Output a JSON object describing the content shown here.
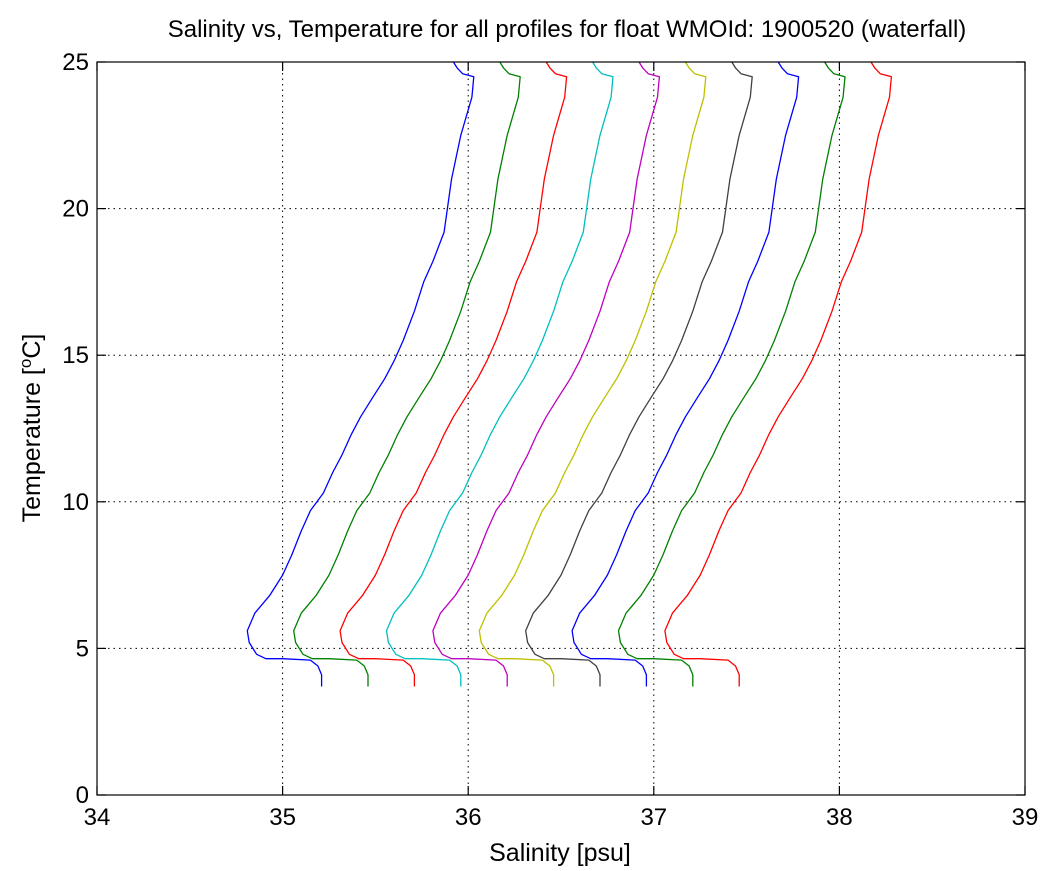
{
  "chart_data": {
    "type": "line",
    "title": "Salinity vs, Temperature for all profiles for float WMOId: 1900520 (waterfall)",
    "xlabel": "Salinity [psu]",
    "ylabel_prefix": "Temperature [",
    "ylabel_superscript": "o",
    "ylabel_suffix": "C]",
    "xlim": [
      34,
      39
    ],
    "ylim": [
      0,
      25
    ],
    "xticks": [
      34,
      35,
      36,
      37,
      38,
      39
    ],
    "yticks": [
      0,
      5,
      10,
      15,
      20,
      25
    ],
    "xtick_labels": [
      "34",
      "35",
      "36",
      "37",
      "38",
      "39"
    ],
    "ytick_labels": [
      "0",
      "5",
      "10",
      "15",
      "20",
      "25"
    ],
    "grid": true,
    "grid_style": "dotted",
    "waterfall_offset": 0.25,
    "base_profile": [
      [
        35.21,
        3.7
      ],
      [
        35.21,
        4.1
      ],
      [
        35.19,
        4.4
      ],
      [
        35.15,
        4.6
      ],
      [
        35.0,
        4.65
      ],
      [
        34.91,
        4.65
      ],
      [
        34.86,
        4.8
      ],
      [
        34.82,
        5.2
      ],
      [
        34.81,
        5.6
      ],
      [
        34.85,
        6.2
      ],
      [
        34.93,
        6.8
      ],
      [
        35.0,
        7.5
      ],
      [
        35.05,
        8.2
      ],
      [
        35.1,
        9.0
      ],
      [
        35.15,
        9.7
      ],
      [
        35.22,
        10.3
      ],
      [
        35.27,
        11.0
      ],
      [
        35.32,
        11.6
      ],
      [
        35.37,
        12.3
      ],
      [
        35.42,
        12.9
      ],
      [
        35.49,
        13.6
      ],
      [
        35.55,
        14.2
      ],
      [
        35.6,
        14.8
      ],
      [
        35.65,
        15.5
      ],
      [
        35.71,
        16.5
      ],
      [
        35.76,
        17.5
      ],
      [
        35.81,
        18.2
      ],
      [
        35.87,
        19.2
      ],
      [
        35.91,
        21.0
      ],
      [
        35.96,
        22.5
      ],
      [
        36.02,
        23.8
      ],
      [
        36.03,
        24.5
      ],
      [
        35.97,
        24.6
      ],
      [
        35.94,
        24.8
      ],
      [
        35.92,
        25.0
      ]
    ],
    "series_colors": [
      "#0000ff",
      "#008000",
      "#ff0000",
      "#00bfbf",
      "#bf00bf",
      "#bfbf00",
      "#404040",
      "#0000ff",
      "#008000",
      "#ff0000"
    ],
    "series": [
      {
        "profile_index": 1,
        "offset": 0.0,
        "color": "#0000ff"
      },
      {
        "profile_index": 2,
        "offset": 0.25,
        "color": "#008000"
      },
      {
        "profile_index": 3,
        "offset": 0.5,
        "color": "#ff0000"
      },
      {
        "profile_index": 4,
        "offset": 0.75,
        "color": "#00bfbf"
      },
      {
        "profile_index": 5,
        "offset": 1.0,
        "color": "#bf00bf"
      },
      {
        "profile_index": 6,
        "offset": 1.25,
        "color": "#bfbf00"
      },
      {
        "profile_index": 7,
        "offset": 1.5,
        "color": "#404040"
      },
      {
        "profile_index": 8,
        "offset": 1.75,
        "color": "#0000ff"
      },
      {
        "profile_index": 9,
        "offset": 2.0,
        "color": "#008000"
      },
      {
        "profile_index": 10,
        "offset": 2.25,
        "color": "#ff0000"
      }
    ]
  }
}
